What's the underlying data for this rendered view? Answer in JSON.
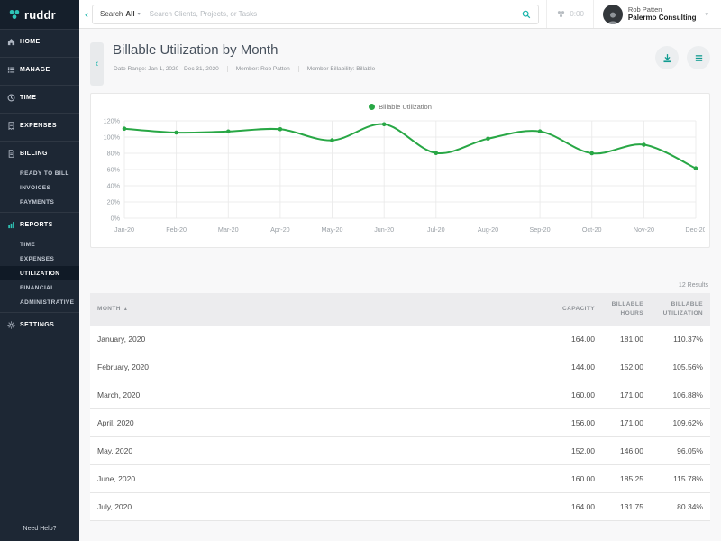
{
  "brand": {
    "name": "ruddr"
  },
  "colors": {
    "accent_teal": "#14b3a9",
    "logo_teal": "#2ec4b6",
    "chart_green": "#28a745"
  },
  "topbar": {
    "search_label": "Search",
    "search_scope": "All",
    "search_placeholder": "Search Clients, Projects, or Tasks",
    "timer": "0:00",
    "user": {
      "name": "Rob Patten",
      "org": "Palermo Consulting"
    }
  },
  "sidebar": {
    "items": [
      {
        "label": "HOME",
        "icon": "home"
      },
      {
        "label": "MANAGE",
        "icon": "manage"
      },
      {
        "label": "TIME",
        "icon": "time"
      },
      {
        "label": "EXPENSES",
        "icon": "expenses"
      },
      {
        "label": "BILLING",
        "icon": "billing",
        "children": [
          {
            "label": "READY TO BILL"
          },
          {
            "label": "INVOICES"
          },
          {
            "label": "PAYMENTS"
          }
        ]
      },
      {
        "label": "REPORTS",
        "icon": "reports",
        "accent": true,
        "children": [
          {
            "label": "TIME"
          },
          {
            "label": "EXPENSES"
          },
          {
            "label": "UTILIZATION",
            "active": true
          },
          {
            "label": "FINANCIAL"
          },
          {
            "label": "ADMINISTRATIVE"
          }
        ]
      },
      {
        "label": "SETTINGS",
        "icon": "settings"
      }
    ],
    "help": "Need Help?"
  },
  "page": {
    "title": "Billable Utilization by Month",
    "filters": [
      "Date Range: Jan 1, 2020 - Dec 31, 2020",
      "Member: Rob Patten",
      "Member Billability: Billable"
    ]
  },
  "chart_data": {
    "type": "line",
    "title": "",
    "xlabel": "",
    "ylabel": "",
    "x": [
      "Jan-20",
      "Feb-20",
      "Mar-20",
      "Apr-20",
      "May-20",
      "Jun-20",
      "Jul-20",
      "Aug-20",
      "Sep-20",
      "Oct-20",
      "Nov-20",
      "Dec-20"
    ],
    "series": [
      {
        "name": "Billable Utilization",
        "values": [
          110.37,
          105.56,
          106.88,
          109.62,
          96.05,
          115.78,
          80.34,
          98,
          107,
          80,
          90.5,
          61.5
        ]
      }
    ],
    "ylim": [
      0,
      120
    ],
    "ytick_step": 20,
    "ytick_suffix": "%",
    "grid": true,
    "legend_position": "top",
    "color": "#28a745"
  },
  "table": {
    "results": "12 Results",
    "columns": [
      {
        "label": "MONTH",
        "sort": "asc",
        "align": "left"
      },
      {
        "label": "CAPACITY",
        "align": "right"
      },
      {
        "label": "BILLABLE HOURS",
        "align": "right"
      },
      {
        "label": "BILLABLE UTILIZATION",
        "align": "right"
      }
    ],
    "rows": [
      [
        "January, 2020",
        "164.00",
        "181.00",
        "110.37%"
      ],
      [
        "February, 2020",
        "144.00",
        "152.00",
        "105.56%"
      ],
      [
        "March, 2020",
        "160.00",
        "171.00",
        "106.88%"
      ],
      [
        "April, 2020",
        "156.00",
        "171.00",
        "109.62%"
      ],
      [
        "May, 2020",
        "152.00",
        "146.00",
        "96.05%"
      ],
      [
        "June, 2020",
        "160.00",
        "185.25",
        "115.78%"
      ],
      [
        "July, 2020",
        "164.00",
        "131.75",
        "80.34%"
      ]
    ]
  }
}
